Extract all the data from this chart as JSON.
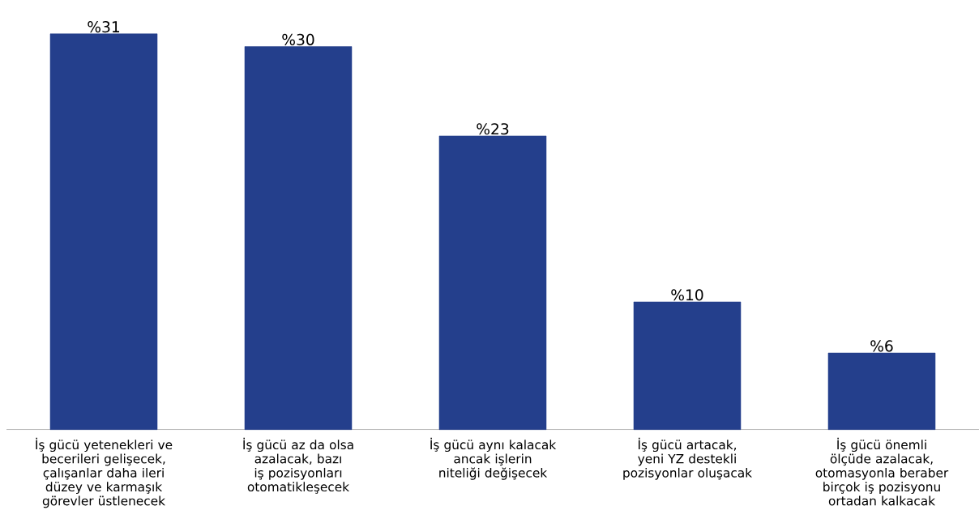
{
  "chart_data": {
    "type": "bar",
    "categories": [
      "İş gücü yetenekleri ve becerileri gelişecek, çalışanlar daha ileri düzey ve karmaşık görevler üstlenecek",
      "İş gücü az da olsa azalacak, bazı iş pozisyonları otomatikleşecek",
      "İş gücü aynı kalacak ancak işlerin niteliği değişecek",
      "İş gücü artacak, yeni YZ destekli pozisyonlar oluşacak",
      "İş gücü önemli ölçüde azalacak, otomasyonla beraber birçok iş pozisyonu ortadan kalkacak"
    ],
    "values": [
      31,
      30,
      23,
      10,
      6
    ],
    "value_labels": [
      "%31",
      "%30",
      "%23",
      "%10",
      "%6"
    ],
    "color": "#243f8c"
  }
}
